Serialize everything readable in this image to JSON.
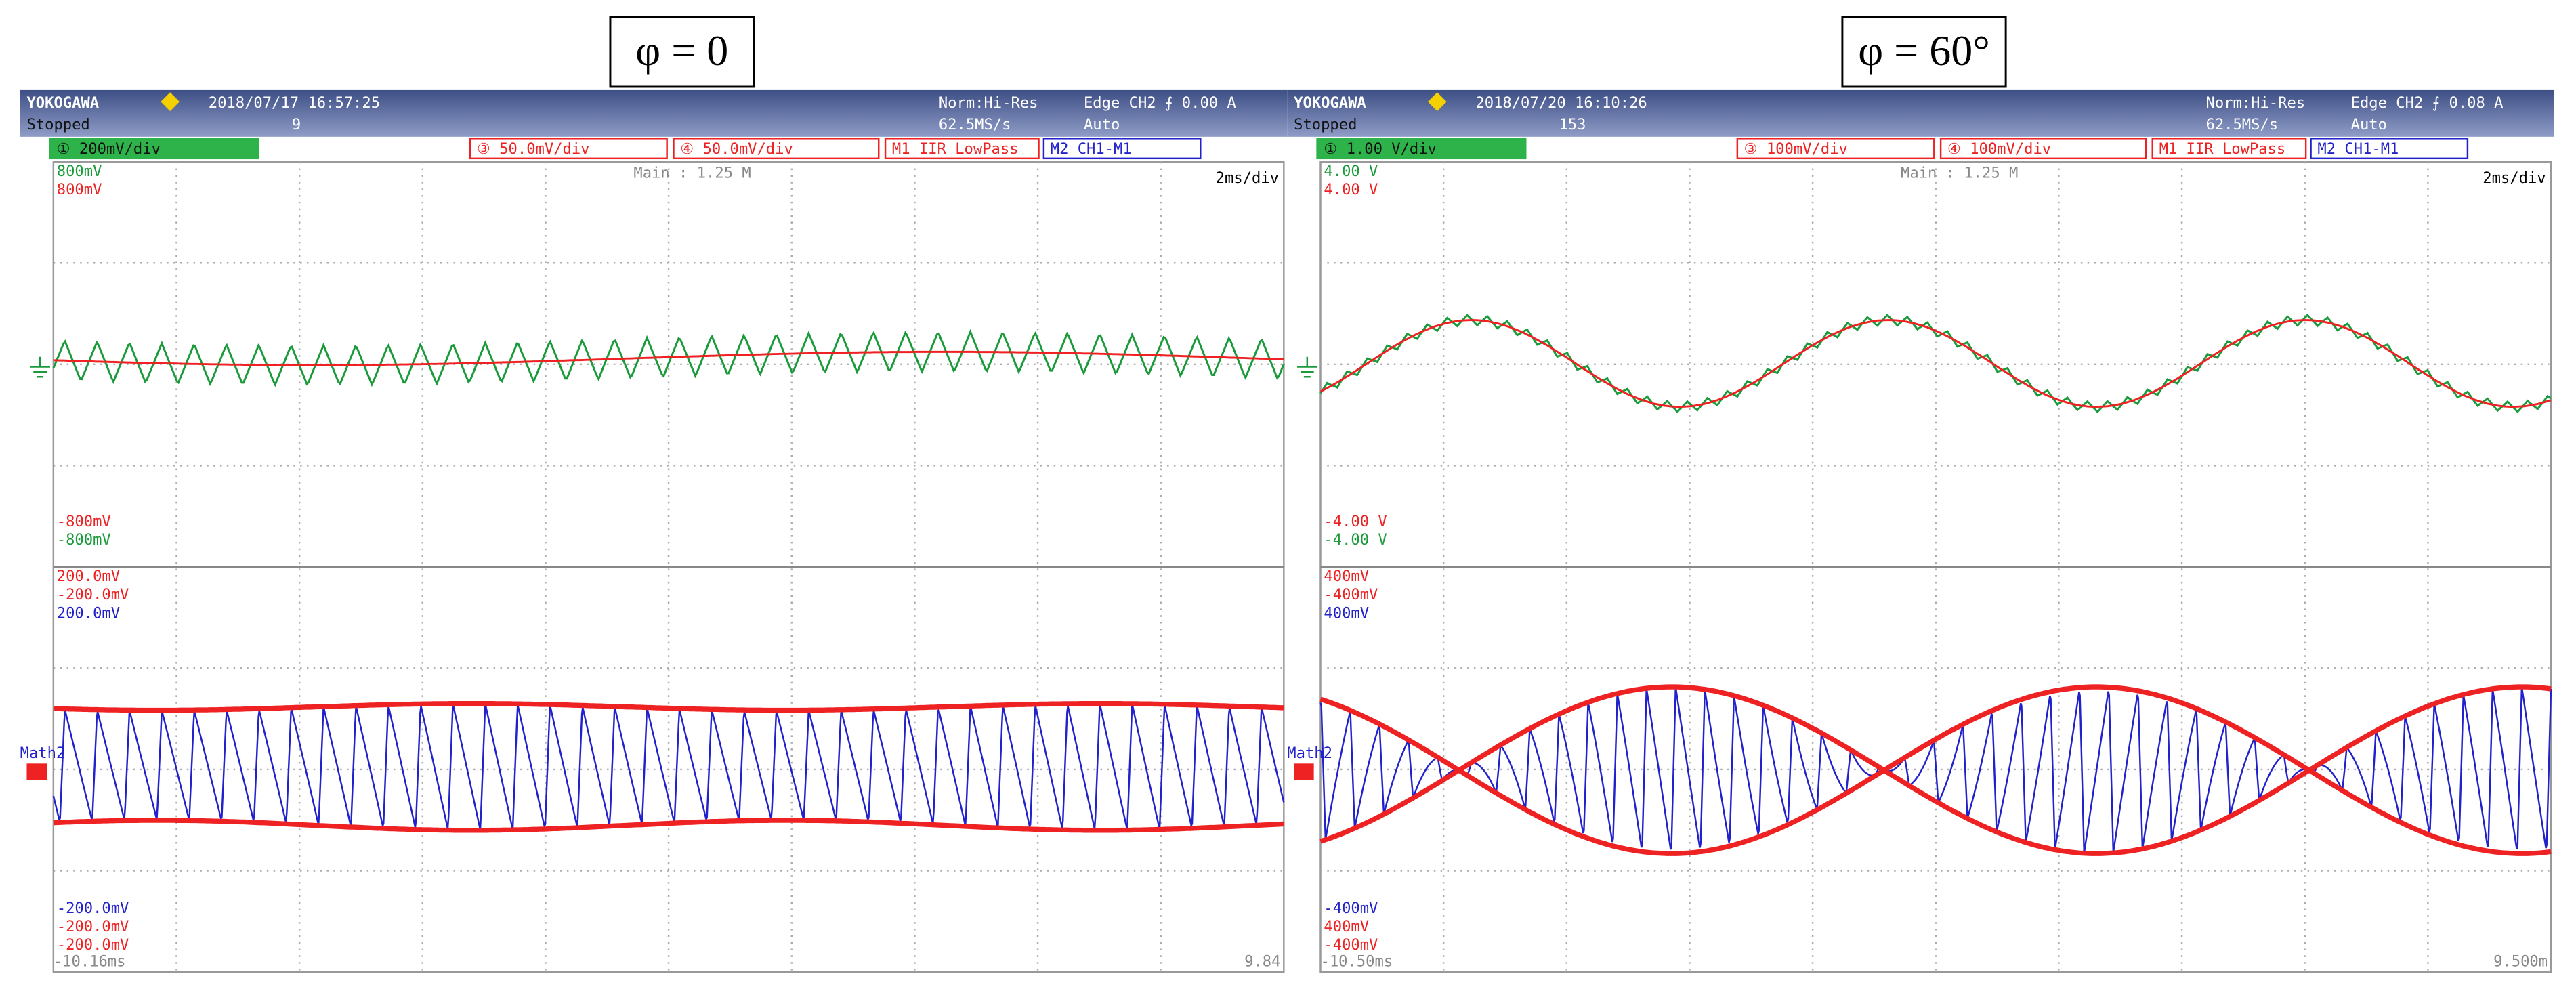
{
  "panels": [
    {
      "caption": "φ = 0",
      "brand": "YOKOGAWA",
      "datetime": "2018/07/17 16:57:25",
      "status": "Stopped",
      "count": "9",
      "acq_mode": "Norm:Hi-Res",
      "sample_rate": "62.5MS/s",
      "trigger": "Edge CH2 ⨍ 0.00 A",
      "trigger_mode": "Auto",
      "channels": [
        "① 200mV/div",
        "③ 50.0mV/div",
        "④ 50.0mV/div",
        "M1 IIR LowPass",
        "M2 CH1-M1"
      ],
      "main": "Main : 1.25 M",
      "timebase": "2ms/div",
      "top_scale": [
        "800mV",
        "800mV"
      ],
      "top_bottom_scale": [
        "-800mV",
        "-800mV"
      ],
      "low_scale": [
        "200.0mV",
        "-200.0mV",
        "200.0mV"
      ],
      "low_bottom_scale": [
        "-200.0mV",
        "-200.0mV",
        "-200.0mV"
      ],
      "math_label": "Math2",
      "time_start": "-10.16ms",
      "time_end": "9.84"
    },
    {
      "caption": "φ = 60°",
      "brand": "YOKOGAWA",
      "datetime": "2018/07/20 16:10:26",
      "status": "Stopped",
      "count": "153",
      "acq_mode": "Norm:Hi-Res",
      "sample_rate": "62.5MS/s",
      "trigger": "Edge CH2 ⨍ 0.08 A",
      "trigger_mode": "Auto",
      "channels": [
        "① 1.00 V/div",
        "③ 100mV/div",
        "④ 100mV/div",
        "M1 IIR LowPass",
        "M2 CH1-M1"
      ],
      "main": "Main : 1.25 M",
      "timebase": "2ms/div",
      "top_scale": [
        "4.00 V",
        "4.00 V"
      ],
      "top_bottom_scale": [
        "-4.00 V",
        "-4.00 V"
      ],
      "low_scale": [
        "400mV",
        "-400mV",
        "400mV"
      ],
      "low_bottom_scale": [
        "-400mV",
        "400mV",
        "-400mV"
      ],
      "math_label": "Math2",
      "time_start": "-10.50ms",
      "time_end": "9.500m"
    }
  ]
}
